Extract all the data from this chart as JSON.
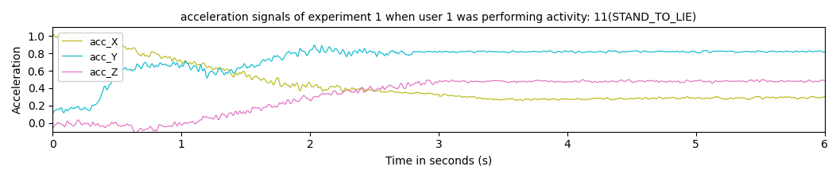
{
  "title": "acceleration signals of experiment 1 when user 1 was performing activity: 11(STAND_TO_LIE)",
  "xlabel": "Time in seconds (s)",
  "ylabel": "Acceleration",
  "xlim": [
    0,
    6
  ],
  "ylim": [
    -0.1,
    1.1
  ],
  "colors": {
    "acc_X": "#bcbd22",
    "acc_Y": "#17becf",
    "acc_Z": "#e377c2"
  },
  "legend_labels": [
    "acc_X",
    "acc_Y",
    "acc_Z"
  ],
  "figsize": [
    10.57,
    2.24
  ],
  "dpi": 100
}
